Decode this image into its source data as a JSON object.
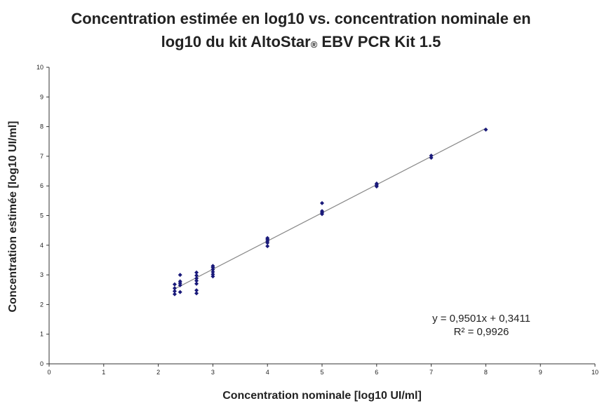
{
  "chart_data": {
    "type": "scatter",
    "title_part1": "Concentration estimée en log10 vs. concentration nominale en",
    "title_part2": "log10 du kit AltoStar",
    "title_sup": "®",
    "title_part3": " EBV PCR Kit 1.5",
    "xlabel": "Concentration nominale [log10 UI/ml]",
    "ylabel": "Concentration estimée [log10 UI/ml]",
    "xlim": [
      0,
      10
    ],
    "ylim": [
      0,
      10
    ],
    "xticks": [
      "0",
      "1",
      "2",
      "3",
      "4",
      "5",
      "6",
      "7",
      "8",
      "9",
      "10"
    ],
    "yticks": [
      "0",
      "1",
      "2",
      "3",
      "4",
      "5",
      "6",
      "7",
      "8",
      "9",
      "10"
    ],
    "grid": false,
    "marker_color": "#1a1a7a",
    "trendline_color": "#888888",
    "trendline": {
      "slope": 0.9501,
      "intercept": 0.3411,
      "x_range": [
        2.3,
        8.0
      ],
      "equation": "y = 0,9501x + 0,3411",
      "r2": "R² = 0,9926"
    },
    "points": [
      {
        "x": 2.3,
        "y": 2.35
      },
      {
        "x": 2.3,
        "y": 2.45
      },
      {
        "x": 2.3,
        "y": 2.55
      },
      {
        "x": 2.3,
        "y": 2.68
      },
      {
        "x": 2.4,
        "y": 2.42
      },
      {
        "x": 2.4,
        "y": 2.65
      },
      {
        "x": 2.4,
        "y": 2.72
      },
      {
        "x": 2.4,
        "y": 2.78
      },
      {
        "x": 2.4,
        "y": 3.0
      },
      {
        "x": 2.7,
        "y": 2.38
      },
      {
        "x": 2.7,
        "y": 2.48
      },
      {
        "x": 2.7,
        "y": 2.7
      },
      {
        "x": 2.7,
        "y": 2.8
      },
      {
        "x": 2.7,
        "y": 2.88
      },
      {
        "x": 2.7,
        "y": 2.98
      },
      {
        "x": 2.7,
        "y": 3.08
      },
      {
        "x": 3.0,
        "y": 2.95
      },
      {
        "x": 3.0,
        "y": 3.02
      },
      {
        "x": 3.0,
        "y": 3.1
      },
      {
        "x": 3.0,
        "y": 3.18
      },
      {
        "x": 3.0,
        "y": 3.25
      },
      {
        "x": 3.0,
        "y": 3.3
      },
      {
        "x": 4.0,
        "y": 3.97
      },
      {
        "x": 4.0,
        "y": 4.08
      },
      {
        "x": 4.0,
        "y": 4.14
      },
      {
        "x": 4.0,
        "y": 4.2
      },
      {
        "x": 4.0,
        "y": 4.24
      },
      {
        "x": 5.0,
        "y": 5.05
      },
      {
        "x": 5.0,
        "y": 5.1
      },
      {
        "x": 5.0,
        "y": 5.15
      },
      {
        "x": 5.0,
        "y": 5.42
      },
      {
        "x": 6.0,
        "y": 5.98
      },
      {
        "x": 6.0,
        "y": 6.03
      },
      {
        "x": 6.0,
        "y": 6.08
      },
      {
        "x": 7.0,
        "y": 6.95
      },
      {
        "x": 7.0,
        "y": 7.02
      },
      {
        "x": 8.0,
        "y": 7.9
      }
    ]
  }
}
